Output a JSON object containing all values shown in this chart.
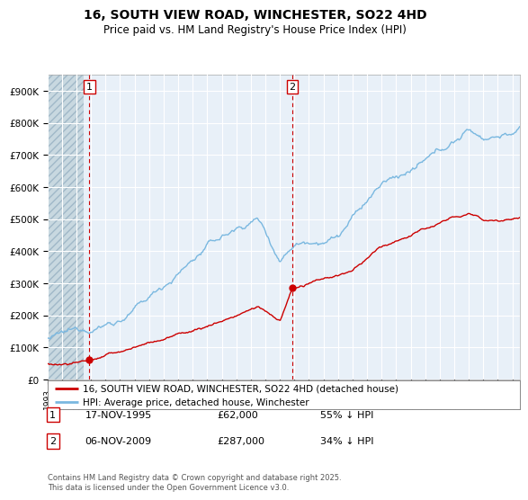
{
  "title": "16, SOUTH VIEW ROAD, WINCHESTER, SO22 4HD",
  "subtitle": "Price paid vs. HM Land Registry's House Price Index (HPI)",
  "ylim": [
    0,
    950000
  ],
  "yticks": [
    0,
    100000,
    200000,
    300000,
    400000,
    500000,
    600000,
    700000,
    800000,
    900000
  ],
  "ytick_labels": [
    "£0",
    "£100K",
    "£200K",
    "£300K",
    "£400K",
    "£500K",
    "£600K",
    "£700K",
    "£800K",
    "£900K"
  ],
  "xlim_start": 1993.0,
  "xlim_end": 2025.5,
  "sale1_x": 1995.88,
  "sale1_y": 62000,
  "sale1_label": "1",
  "sale1_date": "17-NOV-1995",
  "sale1_price": "£62,000",
  "sale1_hpi": "55% ↓ HPI",
  "sale2_x": 2009.85,
  "sale2_y": 287000,
  "sale2_label": "2",
  "sale2_date": "06-NOV-2009",
  "sale2_price": "£287,000",
  "sale2_hpi": "34% ↓ HPI",
  "hpi_color": "#7ab8e0",
  "price_color": "#cc0000",
  "vline_color": "#cc0000",
  "hatch_bg_color": "#dce8f0",
  "plain_bg_color": "#e8f0f8",
  "grid_color": "#ffffff",
  "legend_line1": "16, SOUTH VIEW ROAD, WINCHESTER, SO22 4HD (detached house)",
  "legend_line2": "HPI: Average price, detached house, Winchester",
  "footer": "Contains HM Land Registry data © Crown copyright and database right 2025.\nThis data is licensed under the Open Government Licence v3.0."
}
